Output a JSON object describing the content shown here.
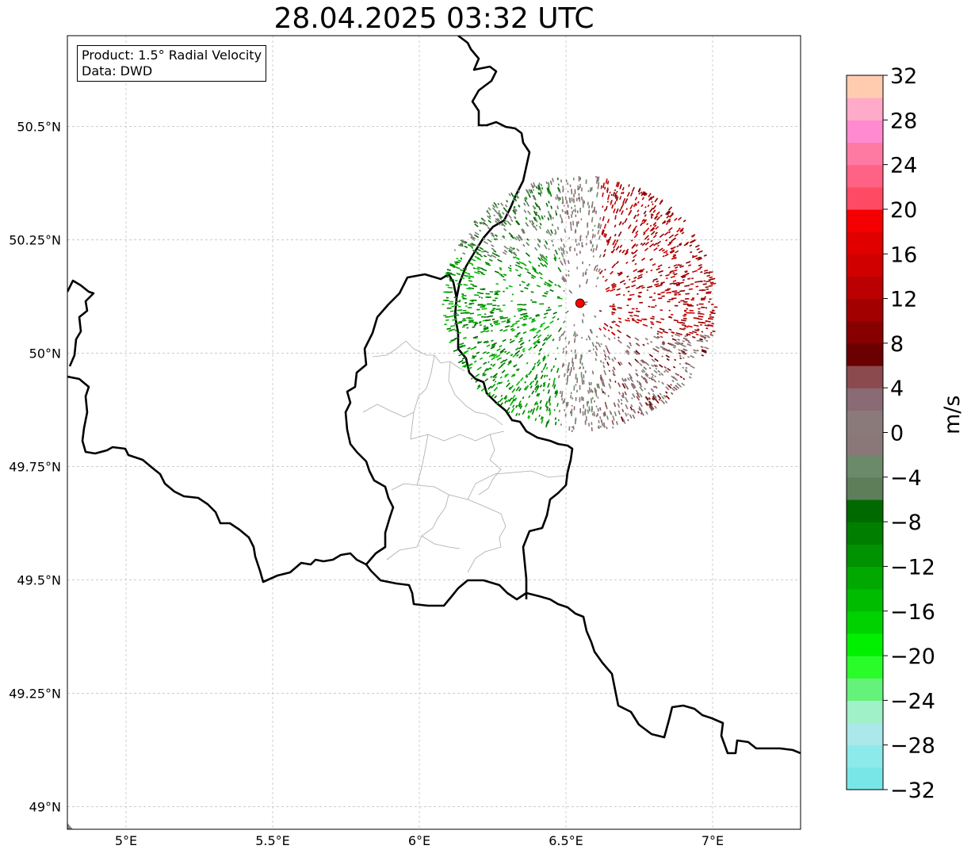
{
  "title": "28.04.2025 03:32 UTC",
  "info_box": {
    "product": "Product: 1.5° Radial Velocity",
    "source": "Data: DWD"
  },
  "map": {
    "lon_range": [
      4.8,
      7.3
    ],
    "lat_range": [
      48.95,
      50.7
    ],
    "x_ticks": [
      {
        "value": 5.0,
        "label": "5°E"
      },
      {
        "value": 5.5,
        "label": "5.5°E"
      },
      {
        "value": 6.0,
        "label": "6°E"
      },
      {
        "value": 6.5,
        "label": "6.5°E"
      },
      {
        "value": 7.0,
        "label": "7°E"
      }
    ],
    "y_ticks": [
      {
        "value": 49.0,
        "label": "49°N"
      },
      {
        "value": 49.25,
        "label": "49.25°N"
      },
      {
        "value": 49.5,
        "label": "49.5°N"
      },
      {
        "value": 49.75,
        "label": "49.75°N"
      },
      {
        "value": 50.0,
        "label": "50°N"
      },
      {
        "value": 50.25,
        "label": "50.25°N"
      },
      {
        "value": 50.5,
        "label": "50.5°N"
      }
    ],
    "gridlines": true,
    "radar_site": {
      "lon": 6.548,
      "lat": 50.11,
      "color": "#ff0000"
    }
  },
  "colorbar": {
    "unit": "m/s",
    "min": -32,
    "max": 32,
    "ticks": [
      {
        "value": 32,
        "label": "32"
      },
      {
        "value": 28,
        "label": "28"
      },
      {
        "value": 24,
        "label": "24"
      },
      {
        "value": 20,
        "label": "20"
      },
      {
        "value": 16,
        "label": "16"
      },
      {
        "value": 12,
        "label": "12"
      },
      {
        "value": 8,
        "label": "8"
      },
      {
        "value": 4,
        "label": "4"
      },
      {
        "value": 0,
        "label": "0"
      },
      {
        "value": -4,
        "label": "−4"
      },
      {
        "value": -8,
        "label": "−8"
      },
      {
        "value": -12,
        "label": "−12"
      },
      {
        "value": -16,
        "label": "−16"
      },
      {
        "value": -20,
        "label": "−20"
      },
      {
        "value": -24,
        "label": "−24"
      },
      {
        "value": -28,
        "label": "−28"
      },
      {
        "value": -32,
        "label": "−32"
      }
    ],
    "colors": [
      "#78e6e6",
      "#8ceaea",
      "#aae8ea",
      "#a0f0c8",
      "#64f27a",
      "#2afc2a",
      "#00f000",
      "#00d200",
      "#00bc00",
      "#00a800",
      "#009200",
      "#007e00",
      "#006a00",
      "#5e7e5a",
      "#6a8a6a",
      "#8a7878",
      "#8a7a7a",
      "#8a6a74",
      "#8a4a4e",
      "#6a0000",
      "#860000",
      "#a20000",
      "#ba0000",
      "#d00000",
      "#e00000",
      "#f40000",
      "#ff4a64",
      "#ff6284",
      "#ff7aa2",
      "#ff8ad0",
      "#ffaac8",
      "#ffccb0"
    ]
  }
}
